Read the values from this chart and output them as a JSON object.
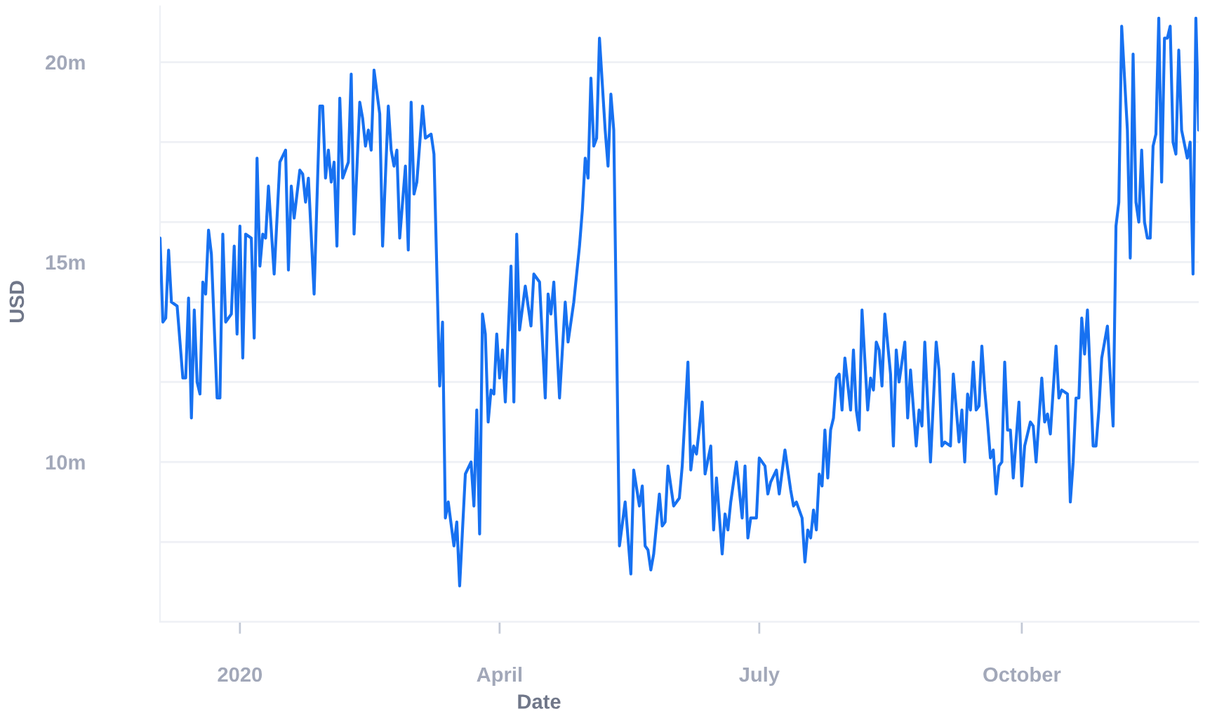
{
  "chart_data": {
    "type": "line",
    "xlabel": "Date",
    "ylabel": "USD",
    "x": [
      "2019-12-04",
      "2019-12-05",
      "2019-12-06",
      "2019-12-07",
      "2019-12-08",
      "2019-12-10",
      "2019-12-12",
      "2019-12-13",
      "2019-12-14",
      "2019-12-15",
      "2019-12-16",
      "2019-12-17",
      "2019-12-18",
      "2019-12-19",
      "2019-12-20",
      "2019-12-21",
      "2019-12-22",
      "2019-12-24",
      "2019-12-25",
      "2019-12-26",
      "2019-12-27",
      "2019-12-29",
      "2019-12-30",
      "2019-12-31",
      "2020-01-01",
      "2020-01-02",
      "2020-01-03",
      "2020-01-05",
      "2020-01-06",
      "2020-01-07",
      "2020-01-08",
      "2020-01-09",
      "2020-01-10",
      "2020-01-11",
      "2020-01-13",
      "2020-01-15",
      "2020-01-17",
      "2020-01-18",
      "2020-01-19",
      "2020-01-20",
      "2020-01-22",
      "2020-01-23",
      "2020-01-24",
      "2020-01-25",
      "2020-01-27",
      "2020-01-29",
      "2020-01-30",
      "2020-01-31",
      "2020-02-01",
      "2020-02-02",
      "2020-02-03",
      "2020-02-04",
      "2020-02-05",
      "2020-02-06",
      "2020-02-08",
      "2020-02-09",
      "2020-02-10",
      "2020-02-12",
      "2020-02-13",
      "2020-02-14",
      "2020-02-15",
      "2020-02-16",
      "2020-02-17",
      "2020-02-19",
      "2020-02-20",
      "2020-02-22",
      "2020-02-23",
      "2020-02-24",
      "2020-02-25",
      "2020-02-26",
      "2020-02-28",
      "2020-02-29",
      "2020-03-01",
      "2020-03-02",
      "2020-03-03",
      "2020-03-05",
      "2020-03-06",
      "2020-03-08",
      "2020-03-09",
      "2020-03-11",
      "2020-03-12",
      "2020-03-13",
      "2020-03-14",
      "2020-03-16",
      "2020-03-17",
      "2020-03-18",
      "2020-03-20",
      "2020-03-22",
      "2020-03-23",
      "2020-03-24",
      "2020-03-25",
      "2020-03-26",
      "2020-03-27",
      "2020-03-28",
      "2020-03-29",
      "2020-03-30",
      "2020-03-31",
      "2020-04-01",
      "2020-04-02",
      "2020-04-03",
      "2020-04-05",
      "2020-04-06",
      "2020-04-07",
      "2020-04-08",
      "2020-04-10",
      "2020-04-12",
      "2020-04-13",
      "2020-04-15",
      "2020-04-17",
      "2020-04-18",
      "2020-04-19",
      "2020-04-20",
      "2020-04-22",
      "2020-04-24",
      "2020-04-25",
      "2020-04-27",
      "2020-04-29",
      "2020-04-30",
      "2020-05-01",
      "2020-05-02",
      "2020-05-03",
      "2020-05-04",
      "2020-05-05",
      "2020-05-06",
      "2020-05-08",
      "2020-05-09",
      "2020-05-10",
      "2020-05-11",
      "2020-05-13",
      "2020-05-15",
      "2020-05-17",
      "2020-05-18",
      "2020-05-20",
      "2020-05-21",
      "2020-05-22",
      "2020-05-23",
      "2020-05-24",
      "2020-05-25",
      "2020-05-27",
      "2020-05-28",
      "2020-05-29",
      "2020-05-30",
      "2020-06-01",
      "2020-06-03",
      "2020-06-04",
      "2020-06-06",
      "2020-06-07",
      "2020-06-08",
      "2020-06-09",
      "2020-06-11",
      "2020-06-12",
      "2020-06-14",
      "2020-06-15",
      "2020-06-16",
      "2020-06-18",
      "2020-06-19",
      "2020-06-20",
      "2020-06-21",
      "2020-06-23",
      "2020-06-25",
      "2020-06-26",
      "2020-06-27",
      "2020-06-28",
      "2020-06-30",
      "2020-07-01",
      "2020-07-02",
      "2020-07-03",
      "2020-07-04",
      "2020-07-05",
      "2020-07-07",
      "2020-07-08",
      "2020-07-10",
      "2020-07-12",
      "2020-07-13",
      "2020-07-14",
      "2020-07-16",
      "2020-07-17",
      "2020-07-18",
      "2020-07-19",
      "2020-07-20",
      "2020-07-21",
      "2020-07-22",
      "2020-07-23",
      "2020-07-24",
      "2020-07-25",
      "2020-07-26",
      "2020-07-27",
      "2020-07-28",
      "2020-07-29",
      "2020-07-30",
      "2020-07-31",
      "2020-08-02",
      "2020-08-03",
      "2020-08-04",
      "2020-08-05",
      "2020-08-06",
      "2020-08-08",
      "2020-08-09",
      "2020-08-10",
      "2020-08-11",
      "2020-08-12",
      "2020-08-13",
      "2020-08-14",
      "2020-08-16",
      "2020-08-17",
      "2020-08-18",
      "2020-08-19",
      "2020-08-21",
      "2020-08-22",
      "2020-08-23",
      "2020-08-25",
      "2020-08-26",
      "2020-08-27",
      "2020-08-28",
      "2020-08-30",
      "2020-09-01",
      "2020-09-02",
      "2020-09-03",
      "2020-09-04",
      "2020-09-06",
      "2020-09-07",
      "2020-09-09",
      "2020-09-10",
      "2020-09-11",
      "2020-09-12",
      "2020-09-13",
      "2020-09-14",
      "2020-09-15",
      "2020-09-16",
      "2020-09-17",
      "2020-09-18",
      "2020-09-19",
      "2020-09-20",
      "2020-09-21",
      "2020-09-22",
      "2020-09-23",
      "2020-09-24",
      "2020-09-25",
      "2020-09-26",
      "2020-09-27",
      "2020-09-28",
      "2020-09-30",
      "2020-10-01",
      "2020-10-02",
      "2020-10-04",
      "2020-10-05",
      "2020-10-06",
      "2020-10-08",
      "2020-10-09",
      "2020-10-10",
      "2020-10-11",
      "2020-10-13",
      "2020-10-14",
      "2020-10-15",
      "2020-10-17",
      "2020-10-18",
      "2020-10-19",
      "2020-10-20",
      "2020-10-21",
      "2020-10-22",
      "2020-10-23",
      "2020-10-24",
      "2020-10-26",
      "2020-10-27",
      "2020-10-28",
      "2020-10-29",
      "2020-10-30",
      "2020-10-31",
      "2020-11-02",
      "2020-11-03",
      "2020-11-04",
      "2020-11-05",
      "2020-11-07",
      "2020-11-08",
      "2020-11-09",
      "2020-11-10",
      "2020-11-11",
      "2020-11-12",
      "2020-11-13",
      "2020-11-14",
      "2020-11-15",
      "2020-11-16",
      "2020-11-17",
      "2020-11-18",
      "2020-11-19",
      "2020-11-20",
      "2020-11-21",
      "2020-11-22",
      "2020-11-23",
      "2020-11-24",
      "2020-11-25",
      "2020-11-26",
      "2020-11-28",
      "2020-11-29",
      "2020-11-30",
      "2020-12-01",
      "2020-12-02"
    ],
    "series": [
      {
        "color": "#1771f1",
        "values": [
          15.6,
          13.5,
          13.6,
          15.3,
          14.0,
          13.9,
          12.1,
          12.1,
          14.1,
          11.1,
          13.8,
          12.0,
          11.7,
          14.5,
          14.2,
          15.8,
          15.2,
          11.6,
          11.6,
          15.7,
          13.5,
          13.7,
          15.4,
          13.2,
          15.9,
          12.6,
          15.7,
          15.6,
          13.1,
          17.6,
          14.9,
          15.7,
          15.6,
          16.9,
          14.7,
          17.5,
          17.8,
          14.8,
          16.9,
          16.1,
          17.3,
          17.2,
          16.5,
          17.1,
          14.2,
          18.9,
          18.9,
          17.1,
          17.8,
          17.0,
          17.5,
          15.4,
          19.1,
          17.1,
          17.5,
          19.7,
          15.7,
          19.0,
          18.6,
          17.9,
          18.3,
          17.8,
          19.8,
          18.7,
          15.4,
          18.9,
          17.8,
          17.4,
          17.8,
          15.6,
          17.4,
          15.3,
          19.0,
          16.7,
          17.0,
          18.9,
          18.1,
          18.2,
          17.7,
          11.9,
          13.5,
          8.6,
          9.0,
          7.9,
          8.5,
          6.9,
          9.7,
          10.0,
          8.9,
          11.3,
          8.2,
          13.7,
          13.2,
          11.0,
          11.8,
          11.7,
          13.2,
          12.1,
          12.8,
          11.5,
          14.9,
          11.5,
          15.7,
          13.3,
          14.4,
          13.4,
          14.7,
          14.5,
          11.6,
          14.2,
          13.7,
          14.5,
          11.6,
          14.0,
          13.0,
          14.0,
          15.4,
          16.3,
          17.6,
          17.1,
          19.6,
          17.9,
          18.1,
          20.6,
          18.3,
          17.4,
          19.2,
          18.3,
          7.9,
          9.0,
          7.2,
          9.8,
          8.9,
          9.4,
          7.9,
          7.8,
          7.3,
          7.7,
          9.2,
          8.4,
          8.5,
          9.9,
          8.9,
          9.1,
          9.9,
          12.5,
          9.8,
          10.4,
          10.2,
          11.5,
          9.7,
          10.4,
          8.3,
          9.6,
          7.7,
          8.7,
          8.3,
          9.0,
          10.0,
          8.6,
          9.9,
          8.1,
          8.6,
          8.6,
          10.1,
          10.0,
          9.9,
          9.2,
          9.5,
          9.8,
          9.2,
          10.3,
          9.3,
          8.9,
          9.0,
          8.6,
          7.5,
          8.3,
          8.1,
          8.8,
          8.3,
          9.7,
          9.4,
          10.8,
          9.6,
          10.8,
          11.1,
          12.1,
          12.2,
          11.3,
          12.6,
          11.3,
          12.8,
          11.3,
          10.8,
          13.8,
          11.3,
          12.1,
          11.8,
          13.0,
          12.8,
          11.9,
          13.7,
          12.2,
          10.4,
          12.8,
          12.0,
          13.0,
          11.1,
          12.3,
          10.4,
          11.3,
          10.9,
          13.0,
          10.0,
          13.0,
          12.3,
          10.4,
          10.5,
          10.4,
          12.2,
          10.5,
          11.3,
          10.0,
          11.7,
          11.3,
          12.5,
          11.3,
          11.4,
          12.9,
          11.8,
          11.0,
          10.1,
          10.3,
          9.2,
          9.9,
          10.0,
          12.5,
          10.8,
          10.8,
          9.6,
          11.5,
          9.4,
          10.4,
          11.0,
          10.9,
          10.0,
          12.1,
          11.0,
          11.2,
          10.7,
          12.9,
          11.6,
          11.8,
          11.7,
          9.0,
          10.0,
          11.6,
          11.6,
          13.6,
          12.7,
          13.8,
          10.4,
          10.4,
          11.3,
          12.6,
          13.0,
          13.4,
          10.9,
          15.9,
          16.5,
          20.9,
          18.3,
          15.1,
          20.2,
          16.5,
          16.0,
          17.8,
          16.0,
          15.6,
          15.6,
          17.9,
          18.2,
          21.1,
          17.0,
          20.6,
          20.6,
          20.9,
          18.0,
          17.7,
          20.3,
          18.3,
          17.6,
          18.0,
          14.7,
          21.1,
          18.3
        ]
      }
    ],
    "xlim": [
      "2019-12-04",
      "2020-12-02"
    ],
    "ylim": [
      6,
      21.4
    ],
    "xticks": [
      {
        "value": "2020-01-01",
        "label": "2020"
      },
      {
        "value": "2020-04-01",
        "label": "April"
      },
      {
        "value": "2020-07-01",
        "label": "July"
      },
      {
        "value": "2020-10-01",
        "label": "October"
      }
    ],
    "yticks": [
      {
        "value": 6,
        "label": null
      },
      {
        "value": 8,
        "label": null
      },
      {
        "value": 10,
        "label": "10m"
      },
      {
        "value": 12,
        "label": null
      },
      {
        "value": 14,
        "label": null
      },
      {
        "value": 15,
        "label": "15m"
      },
      {
        "value": 16,
        "label": null
      },
      {
        "value": 18,
        "label": null
      },
      {
        "value": 20,
        "label": "20m"
      }
    ],
    "grid": "y",
    "line_style": "solid"
  }
}
